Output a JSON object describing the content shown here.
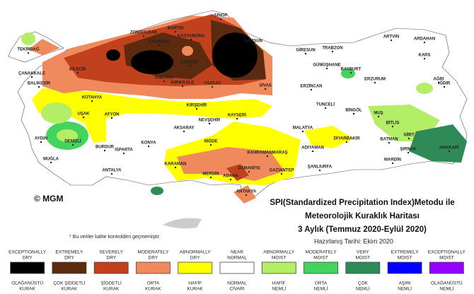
{
  "map": {
    "cities": [
      "SİNOP",
      "BARTIN",
      "ZONGULDAK",
      "KASTAMONU",
      "KARABÜK",
      "SAMSUN",
      "ÇANKIRI",
      "TEKİRDAĞ",
      "ÇANAKKALE",
      "BALIKESİR",
      "BİLECİK",
      "KÜTAHYA",
      "ANKARA",
      "KIRIKKALE",
      "YOZGAT",
      "SİVAS",
      "GİRESUN",
      "TRABZON",
      "ARTVİN",
      "ARDAHAN",
      "KARS",
      "GÜMÜŞHANE",
      "BAYBURT",
      "ERZİNCAN",
      "ERZURUM",
      "AĞRI",
      "IĞDIR",
      "TUNCELİ",
      "BİNGÖL",
      "MUŞ",
      "BİTLİS",
      "MALATYA",
      "DİYARBAKIR",
      "BATMAN",
      "SİİRT",
      "ŞIRNAK",
      "HAKKARİ",
      "MARDİN",
      "ŞANLIURFA",
      "ADIYAMAN",
      "KAHRAMANMARAŞ",
      "OSMANİYE",
      "GAZİANTEP",
      "ADANA",
      "MERSİN",
      "ANTAKYA",
      "NİĞDE",
      "NEVŞEHİR",
      "KAYSERİ",
      "KIRŞEHİR",
      "AKSARAY",
      "KONYA",
      "KARAMAN",
      "ANTALYA",
      "ISPARTA",
      "BURDUR",
      "AFYON",
      "UŞAK",
      "DENİZLİ",
      "MUĞLA",
      "AYDIN"
    ],
    "copyright": "© MGM",
    "note": "* Bu veriler kalite kontrolden geçmemiştir."
  },
  "title": {
    "line1": "SPI(Standardized Precipitation Index)Metodu ile",
    "line2": "Meteorolojik Kuraklık Haritası",
    "line3": "3 Aylık (Temmuz 2020-Eylül 2020)",
    "prepared": "Hazırlanış Tarihi: Ekim 2020"
  },
  "legend": [
    {
      "en": [
        "EXCEPTIONALLY",
        "DRY"
      ],
      "color": "#000000",
      "tr": [
        "OLAĞANÜSTÜ",
        "KURAK"
      ]
    },
    {
      "en": [
        "EXTREMELY",
        "DRY"
      ],
      "color": "#5c2a0e",
      "tr": [
        "ÇOK ŞİDDETLİ",
        "KURAK"
      ]
    },
    {
      "en": [
        "SEVERELY",
        "DRY"
      ],
      "color": "#c2411d",
      "tr": [
        "ŞİDDETLİ",
        "KURAK"
      ]
    },
    {
      "en": [
        "MODERATELY",
        "DRY"
      ],
      "color": "#f08a5d",
      "tr": [
        "ORTA",
        "KURAK"
      ]
    },
    {
      "en": [
        "ABNORMALLY",
        "DRY"
      ],
      "color": "#ffff00",
      "tr": [
        "HAFİF",
        "KURAK"
      ]
    },
    {
      "en": [
        "NEAR",
        "NORMAL"
      ],
      "color": "#ffffff",
      "tr": [
        "NORMAL",
        "CİVARI"
      ]
    },
    {
      "en": [
        "ABNORMALLY",
        "MOIST"
      ],
      "color": "#b4ee66",
      "tr": [
        "HAFİF",
        "NEMLİ"
      ]
    },
    {
      "en": [
        "MODERATELY",
        "MOIST"
      ],
      "color": "#44d35c",
      "tr": [
        "ORTA",
        "NEMLİ"
      ]
    },
    {
      "en": [
        "VERY",
        "MOIST"
      ],
      "color": "#2e8b57",
      "tr": [
        "ÇOK",
        "NEMLİ"
      ]
    },
    {
      "en": [
        "EXTREMELY",
        "MOIST"
      ],
      "color": "#0000ff",
      "tr": [
        "AŞIRI",
        "NEMLİ"
      ]
    },
    {
      "en": [
        "EXCEPTIONALLY",
        "MOIST"
      ],
      "color": "#9400ff",
      "tr": [
        "OLAĞANÜSTÜ",
        "NEMLİ"
      ]
    }
  ]
}
